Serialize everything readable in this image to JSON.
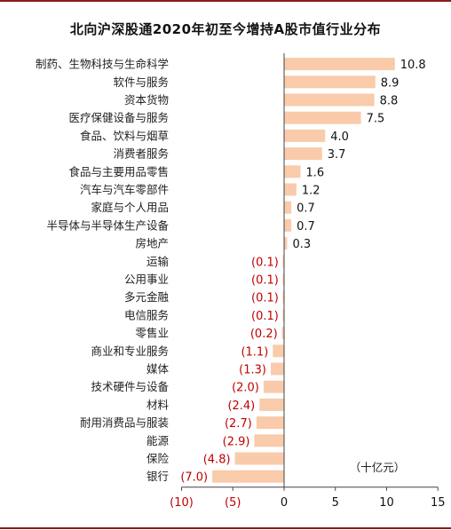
{
  "chart_data": {
    "type": "bar",
    "orientation": "horizontal",
    "title": "北向沪深股通2020年初至今增持A股市值行业分布",
    "unit_label": "（十亿元）",
    "categories": [
      "制药、生物科技与生命科学",
      "软件与服务",
      "资本货物",
      "医疗保健设备与服务",
      "食品、饮料与烟草",
      "消费者服务",
      "食品与主要用品零售",
      "汽车与汽车零部件",
      "家庭与个人用品",
      "半导体与半导体生产设备",
      "房地产",
      "运输",
      "公用事业",
      "多元金融",
      "电信服务",
      "零售业",
      "商业和专业服务",
      "媒体",
      "技术硬件与设备",
      "材料",
      "耐用消费品与服装",
      "能源",
      "保险",
      "银行"
    ],
    "values": [
      10.8,
      8.9,
      8.8,
      7.5,
      4.0,
      3.7,
      1.6,
      1.2,
      0.7,
      0.7,
      0.3,
      -0.1,
      -0.1,
      -0.1,
      -0.1,
      -0.2,
      -1.1,
      -1.3,
      -2.0,
      -2.4,
      -2.7,
      -2.9,
      -4.8,
      -7.0
    ],
    "value_labels": [
      "10.8",
      "8.9",
      "8.8",
      "7.5",
      "4.0",
      "3.7",
      "1.6",
      "1.2",
      "0.7",
      "0.7",
      "0.3",
      "(0.1)",
      "(0.1)",
      "(0.1)",
      "(0.1)",
      "(0.2)",
      "(1.1)",
      "(1.3)",
      "(2.0)",
      "(2.4)",
      "(2.7)",
      "(2.9)",
      "(4.8)",
      "(7.0)"
    ],
    "xlim": [
      -10,
      15
    ],
    "xticks": [
      -10,
      -5,
      0,
      5,
      10,
      15
    ],
    "xtick_labels": [
      "(10)",
      "(5)",
      "0",
      "5",
      "10",
      "15"
    ],
    "grid": false,
    "colors": {
      "bar": "#f9cbaa",
      "positive_label": "#111111",
      "negative_label": "#c00000",
      "frame": "#8b1a1a",
      "axis": "#444444"
    }
  }
}
